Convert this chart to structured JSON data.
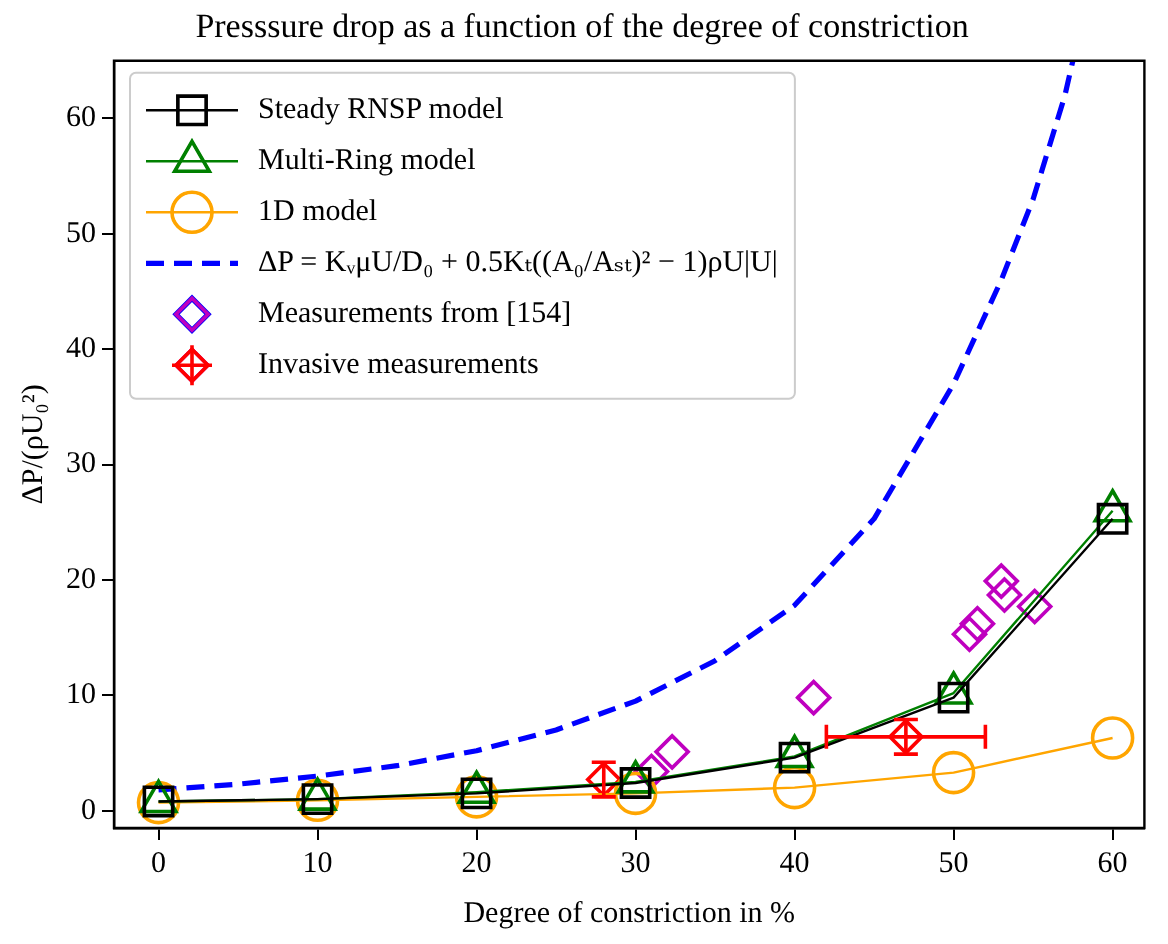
{
  "chart_data": {
    "type": "line",
    "title": "Presssure drop as a function of the degree of constriction",
    "xlabel": "Degree of constriction in %",
    "ylabel": "ΔP/(ρU₀²)",
    "xlim": [
      -2.8,
      62
    ],
    "ylim": [
      -1.5,
      65
    ],
    "xticks": [
      0,
      10,
      20,
      30,
      40,
      50,
      60
    ],
    "yticks": [
      0,
      10,
      20,
      30,
      40,
      50,
      60
    ],
    "grid": false,
    "legend": "top left",
    "series": [
      {
        "name": "Steady RNSP model",
        "color": "#000000",
        "marker": "square",
        "x": [
          0,
          10,
          20,
          30,
          40,
          50,
          60
        ],
        "values": [
          0.8,
          1.0,
          1.5,
          2.4,
          4.6,
          9.8,
          25.3
        ]
      },
      {
        "name": "Multi-Ring model",
        "color": "#008000",
        "marker": "triangle",
        "x": [
          0,
          10,
          20,
          30,
          40,
          50,
          60
        ],
        "values": [
          0.8,
          1.0,
          1.6,
          2.5,
          4.7,
          10.2,
          26.0
        ]
      },
      {
        "name": "1D model",
        "color": "#ffa500",
        "marker": "circle",
        "x": [
          0,
          10,
          20,
          30,
          40,
          50,
          60
        ],
        "values": [
          0.7,
          0.9,
          1.2,
          1.5,
          2.0,
          3.3,
          6.3
        ]
      },
      {
        "name": "ΔP = KᵥμU/D₀ + 0.5Kₜ((A₀/Aₛₜ)² − 1)ρU|U|",
        "color": "#0000ff",
        "marker": "none",
        "line_style": "dashed",
        "x": [
          0,
          5,
          10,
          15,
          20,
          25,
          30,
          35,
          40,
          45,
          50,
          53,
          55,
          57,
          57.5
        ],
        "values": [
          1.8,
          2.3,
          3.0,
          3.9,
          5.2,
          7.0,
          9.5,
          13.0,
          17.8,
          25.3,
          37,
          46,
          53,
          62,
          65
        ]
      },
      {
        "name": "Measurements from [154]",
        "type": "scatter",
        "color": "#bf00bf",
        "marker": "diamond",
        "x": [
          31.0,
          32.3,
          41.2,
          51.0,
          51.5,
          53.0,
          53.2,
          55.1
        ],
        "values": [
          3.4,
          5.1,
          9.8,
          15.3,
          16.2,
          19.9,
          18.7,
          17.7
        ]
      },
      {
        "name": "Invasive measurements",
        "type": "scatter",
        "color": "#ff0000",
        "marker": "diamond",
        "x": [
          28.0,
          47.0
        ],
        "values": [
          2.7,
          6.4
        ],
        "errors": [
          1.5,
          1.5
        ],
        "xerrors": [
          null,
          5
        ]
      }
    ]
  }
}
